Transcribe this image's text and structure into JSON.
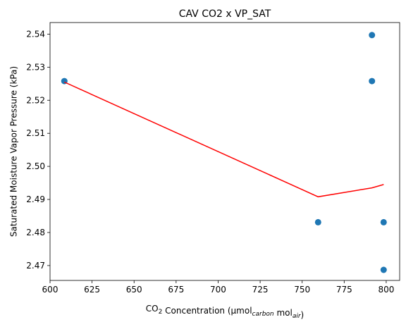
{
  "chart_data": {
    "type": "scatter",
    "title": "CAV CO2 x VP_SAT",
    "xlabel": {
      "parts": [
        {
          "text": "CO",
          "style": "normal"
        },
        {
          "text": "2",
          "style": "sub"
        },
        {
          "text": " Concentration (μmol",
          "style": "normal"
        },
        {
          "text": "carbon",
          "style": "sub-italic"
        },
        {
          "text": " mol",
          "style": "normal"
        },
        {
          "text": "air",
          "style": "sub-italic"
        },
        {
          "text": ")",
          "style": "normal"
        }
      ]
    },
    "ylabel": "Saturated Moisture Vapor Pressure (kPa)",
    "xlim": [
      600,
      808
    ],
    "ylim": [
      2.4655,
      2.5435
    ],
    "xticks": [
      600,
      625,
      650,
      675,
      700,
      725,
      750,
      775,
      800
    ],
    "yticks": [
      2.47,
      2.48,
      2.49,
      2.5,
      2.51,
      2.52,
      2.53,
      2.54
    ],
    "ytick_format": 2,
    "grid": false,
    "colors": {
      "points": "#1f77b4",
      "line": "#ff0000"
    },
    "series": [
      {
        "kind": "points",
        "x": [
          608.5,
          759.5,
          791.5,
          791.5,
          798.5,
          798.5
        ],
        "y": [
          2.5258,
          2.4831,
          2.5397,
          2.5258,
          2.4831,
          2.4687
        ]
      },
      {
        "kind": "line",
        "x": [
          608.5,
          759.5,
          791.5,
          798.5
        ],
        "y": [
          2.5255,
          2.4908,
          2.4935,
          2.4945
        ]
      }
    ]
  }
}
